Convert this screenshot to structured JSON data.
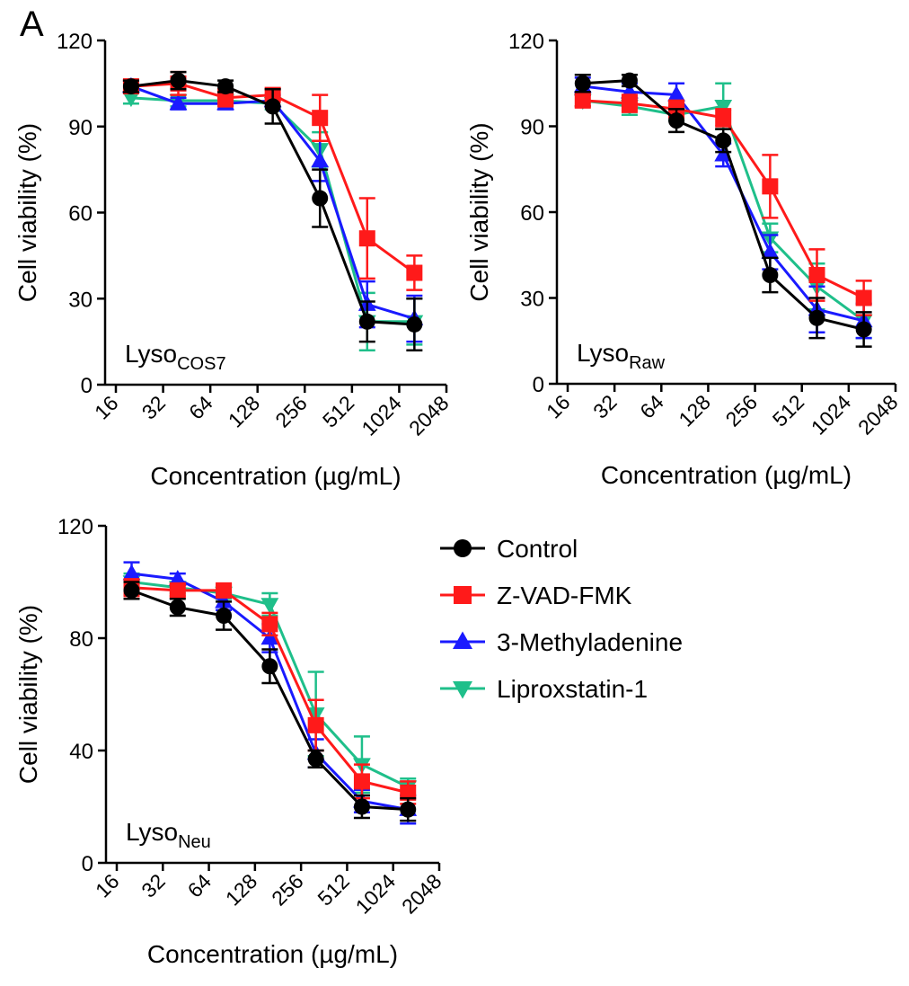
{
  "panel_label": "A",
  "legend": {
    "items": [
      {
        "name": "Control",
        "color": "#000000",
        "marker": "circle"
      },
      {
        "name": "Z-VAD-FMK",
        "color": "#ff1a1a",
        "marker": "square"
      },
      {
        "name": "3-Methyladenine",
        "color": "#1a1aff",
        "marker": "triangle-up"
      },
      {
        "name": "Liproxstatin-1",
        "color": "#1fbf8a",
        "marker": "triangle-down"
      }
    ]
  },
  "chart_data": [
    {
      "type": "line",
      "cell_line_label": "Lyso",
      "cell_line_sub": "COS7",
      "xlabel": "Concentration (µg/mL)",
      "ylabel": "Cell viability (%)",
      "x_ticks": [
        "16",
        "32",
        "64",
        "128",
        "256",
        "512",
        "1024",
        "2048"
      ],
      "y_ticks": [
        0,
        30,
        60,
        90,
        120
      ],
      "ylim": [
        0,
        120
      ],
      "x": [
        20,
        40,
        80,
        160,
        320,
        640,
        1280
      ],
      "series": [
        {
          "name": "Control",
          "values": [
            104,
            106,
            104,
            97,
            65,
            22,
            21
          ],
          "errors": [
            2,
            3,
            2,
            6,
            10,
            7,
            9
          ]
        },
        {
          "name": "Z-VAD-FMK",
          "values": [
            104,
            105,
            100,
            101,
            93,
            51,
            39
          ],
          "errors": [
            2,
            4,
            3,
            2,
            8,
            14,
            6
          ]
        },
        {
          "name": "3-Methyladenine",
          "values": [
            104,
            98,
            98,
            99,
            78,
            28,
            23
          ],
          "errors": [
            2,
            2,
            2,
            2,
            7,
            8,
            8
          ]
        },
        {
          "name": "Liproxstatin-1",
          "values": [
            100,
            99,
            99,
            98,
            82,
            22,
            22
          ],
          "errors": [
            2,
            2,
            2,
            2,
            6,
            10,
            8
          ]
        }
      ]
    },
    {
      "type": "line",
      "cell_line_label": "Lyso",
      "cell_line_sub": "Raw",
      "xlabel": "Concentration (µg/mL)",
      "ylabel": "Cell viability (%)",
      "x_ticks": [
        "16",
        "32",
        "64",
        "128",
        "256",
        "512",
        "1024",
        "2048"
      ],
      "y_ticks": [
        0,
        30,
        60,
        90,
        120
      ],
      "ylim": [
        0,
        120
      ],
      "x": [
        20,
        40,
        80,
        160,
        320,
        640,
        1280
      ],
      "series": [
        {
          "name": "Control",
          "values": [
            105,
            106,
            92,
            85,
            38,
            23,
            19
          ],
          "errors": [
            3,
            2,
            4,
            4,
            6,
            7,
            6
          ]
        },
        {
          "name": "Z-VAD-FMK",
          "values": [
            99,
            98,
            96,
            93,
            69,
            38,
            30
          ],
          "errors": [
            2,
            3,
            3,
            3,
            11,
            9,
            6
          ]
        },
        {
          "name": "3-Methyladenine",
          "values": [
            104,
            102,
            101,
            80,
            46,
            26,
            22
          ],
          "errors": [
            3,
            3,
            4,
            4,
            6,
            8,
            6
          ]
        },
        {
          "name": "Liproxstatin-1",
          "values": [
            99,
            97,
            94,
            97,
            51,
            34,
            22
          ],
          "errors": [
            2,
            3,
            2,
            8,
            5,
            8,
            6
          ]
        }
      ]
    },
    {
      "type": "line",
      "cell_line_label": "Lyso",
      "cell_line_sub": "Neu",
      "xlabel": "Concentration (µg/mL)",
      "ylabel": "Cell viability (%)",
      "x_ticks": [
        "16",
        "32",
        "64",
        "128",
        "256",
        "512",
        "1024",
        "2048"
      ],
      "y_ticks": [
        0,
        40,
        80,
        120
      ],
      "ylim": [
        0,
        120
      ],
      "x": [
        20,
        40,
        80,
        160,
        320,
        640,
        1280
      ],
      "series": [
        {
          "name": "Control",
          "values": [
            97,
            91,
            88,
            70,
            37,
            20,
            19
          ],
          "errors": [
            3,
            3,
            5,
            6,
            3,
            4,
            4
          ]
        },
        {
          "name": "Z-VAD-FMK",
          "values": [
            98,
            97,
            97,
            85,
            49,
            29,
            25
          ],
          "errors": [
            3,
            2,
            2,
            4,
            9,
            6,
            4
          ]
        },
        {
          "name": "3-Methyladenine",
          "values": [
            103,
            101,
            93,
            80,
            39,
            22,
            19
          ],
          "errors": [
            4,
            2,
            3,
            5,
            5,
            4,
            5
          ]
        },
        {
          "name": "Liproxstatin-1",
          "values": [
            100,
            98,
            96,
            92,
            53,
            35,
            27
          ],
          "errors": [
            3,
            2,
            2,
            4,
            15,
            10,
            3
          ]
        }
      ]
    }
  ]
}
